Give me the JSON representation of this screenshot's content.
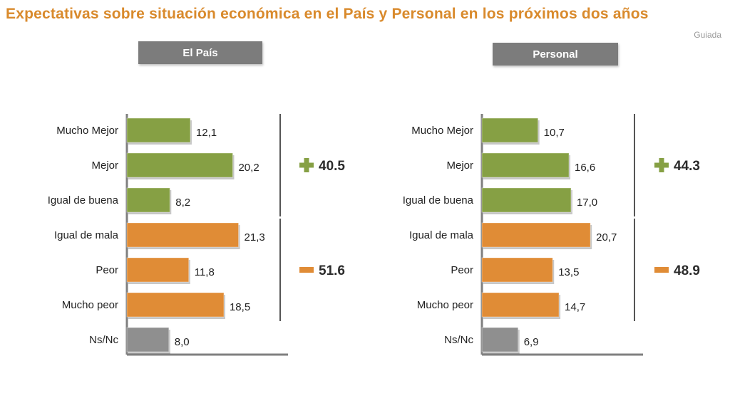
{
  "title": "Expectativas sobre situación económica en el País y Personal en los próximos dos años",
  "source": "Guiada",
  "colors": {
    "title": "#d98a2c",
    "positive": "#86a044",
    "negative": "#e08c36",
    "neutral": "#8f8f8f",
    "header": "#7c7c7c"
  },
  "chart_data": [
    {
      "type": "bar",
      "orientation": "horizontal",
      "title": "El País",
      "categories": [
        "Mucho Mejor",
        "Mejor",
        "Igual de buena",
        "Igual de mala",
        "Peor",
        "Mucho peor",
        "Ns/Nc"
      ],
      "values": [
        12.1,
        20.2,
        8.2,
        21.3,
        11.8,
        18.5,
        8.0
      ],
      "value_labels": [
        "12,1",
        "20,2",
        "8,2",
        "21,3",
        "11,8",
        "18,5",
        "8,0"
      ],
      "groups": [
        "positive",
        "positive",
        "positive",
        "negative",
        "negative",
        "negative",
        "neutral"
      ],
      "totals": [
        {
          "group": "positive",
          "sign": "+",
          "value": "40.5"
        },
        {
          "group": "negative",
          "sign": "−",
          "value": "51.6"
        }
      ]
    },
    {
      "type": "bar",
      "orientation": "horizontal",
      "title": "Personal",
      "categories": [
        "Mucho Mejor",
        "Mejor",
        "Igual de buena",
        "Igual de mala",
        "Peor",
        "Mucho peor",
        "Ns/Nc"
      ],
      "values": [
        10.7,
        16.6,
        17.0,
        20.7,
        13.5,
        14.7,
        6.9
      ],
      "value_labels": [
        "10,7",
        "16,6",
        "17,0",
        "20,7",
        "13,5",
        "14,7",
        "6,9"
      ],
      "groups": [
        "positive",
        "positive",
        "positive",
        "negative",
        "negative",
        "negative",
        "neutral"
      ],
      "totals": [
        {
          "group": "positive",
          "sign": "+",
          "value": "44.3"
        },
        {
          "group": "negative",
          "sign": "−",
          "value": "48.9"
        }
      ]
    }
  ]
}
